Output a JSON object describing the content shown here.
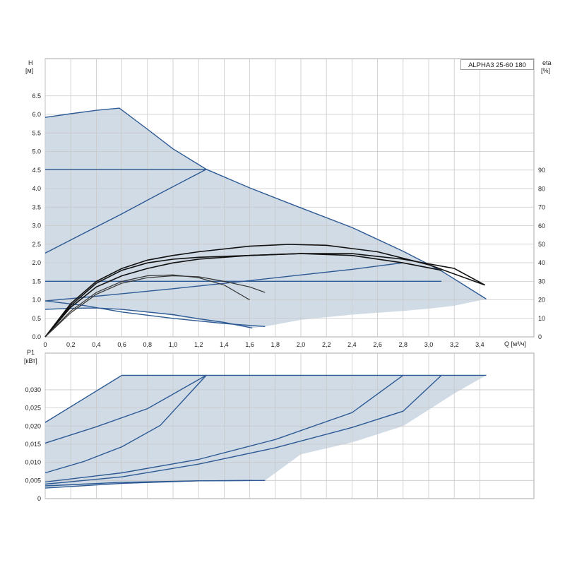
{
  "chart_data": [
    {
      "type": "line",
      "model_label": "ALPHA3 25-60 180",
      "y_label": "H",
      "y_unit": "[м]",
      "y2_label": "eta",
      "y2_unit": "[%]",
      "x_label": "Q [м³/ч]",
      "xlim": [
        0,
        3.7
      ],
      "ylim": [
        0,
        7.5
      ],
      "y2lim": [
        0,
        100
      ],
      "x_ticks": [
        "0",
        "0,2",
        "0,4",
        "0,6",
        "0,8",
        "1,0",
        "1,2",
        "1,4",
        "1,6",
        "1,8",
        "2,0",
        "2,2",
        "2,4",
        "2,6",
        "2,8",
        "3,0",
        "3,2",
        "3,4"
      ],
      "y_ticks": [
        "0.0",
        "0.5",
        "1.0",
        "1.5",
        "2.0",
        "2.5",
        "3.0",
        "3.5",
        "4.0",
        "4.5",
        "5.0",
        "5.5",
        "6.0",
        "6.5"
      ],
      "y2_ticks": [
        "0",
        "10",
        "20",
        "30",
        "40",
        "50",
        "60",
        "70",
        "80",
        "90"
      ],
      "grid": true,
      "envelope": [
        [
          0,
          5.92
        ],
        [
          0.2,
          6.02
        ],
        [
          0.4,
          6.11
        ],
        [
          0.58,
          6.17
        ],
        [
          0.8,
          5.6
        ],
        [
          1.0,
          5.07
        ],
        [
          1.26,
          4.52
        ],
        [
          1.6,
          4.02
        ],
        [
          2.0,
          3.48
        ],
        [
          2.4,
          2.95
        ],
        [
          2.8,
          2.31
        ],
        [
          3.1,
          1.78
        ],
        [
          3.45,
          1.02
        ],
        [
          3.2,
          0.84
        ],
        [
          3.0,
          0.76
        ],
        [
          2.8,
          0.7
        ],
        [
          2.4,
          0.6
        ],
        [
          2.0,
          0.46
        ],
        [
          1.72,
          0.28
        ],
        [
          1.62,
          0.24
        ],
        [
          1.2,
          0.46
        ],
        [
          0.8,
          0.68
        ],
        [
          0.4,
          0.78
        ],
        [
          0.2,
          0.77
        ],
        [
          0,
          0.74
        ]
      ],
      "pump_curves": [
        {
          "points": [
            [
              0,
              0.74
            ],
            [
              0.2,
              0.77
            ],
            [
              0.4,
              0.78
            ],
            [
              0.6,
              0.74
            ],
            [
              0.8,
              0.67
            ],
            [
              1.0,
              0.6
            ],
            [
              1.2,
              0.49
            ],
            [
              1.4,
              0.39
            ],
            [
              1.62,
              0.24
            ]
          ]
        },
        {
          "points": [
            [
              0,
              0.97
            ],
            [
              0.3,
              0.85
            ],
            [
              0.6,
              0.67
            ],
            [
              1.0,
              0.5
            ],
            [
              1.4,
              0.36
            ],
            [
              1.72,
              0.28
            ]
          ]
        },
        {
          "points": [
            [
              0,
              4.52
            ],
            [
              1.26,
              4.52
            ]
          ]
        },
        {
          "points": [
            [
              0,
              1.5
            ],
            [
              3.1,
              1.5
            ]
          ]
        },
        {
          "points": [
            [
              0,
              2.26
            ],
            [
              0.3,
              2.79
            ],
            [
              0.6,
              3.32
            ],
            [
              0.9,
              3.87
            ],
            [
              1.26,
              4.52
            ]
          ]
        },
        {
          "points": [
            [
              0,
              0.97
            ],
            [
              0.5,
              1.13
            ],
            [
              1.0,
              1.3
            ],
            [
              1.5,
              1.48
            ],
            [
              2.0,
              1.67
            ],
            [
              2.4,
              1.82
            ],
            [
              2.8,
              2.0
            ]
          ]
        },
        {
          "points": [
            [
              0,
              5.92
            ],
            [
              0.2,
              6.02
            ],
            [
              0.4,
              6.11
            ],
            [
              0.58,
              6.17
            ],
            [
              0.8,
              5.6
            ],
            [
              1.0,
              5.07
            ],
            [
              1.26,
              4.52
            ],
            [
              1.6,
              4.02
            ],
            [
              2.0,
              3.48
            ],
            [
              2.4,
              2.95
            ],
            [
              2.8,
              2.31
            ],
            [
              3.1,
              1.78
            ],
            [
              3.45,
              1.02
            ]
          ]
        }
      ],
      "efficiency_curves_eta_percent": [
        {
          "points": [
            [
              0,
              0
            ],
            [
              0.2,
              17
            ],
            [
              0.4,
              29
            ],
            [
              0.6,
              36
            ],
            [
              0.8,
              40
            ],
            [
              1.0,
              42
            ],
            [
              1.2,
              43
            ],
            [
              1.6,
              44
            ],
            [
              2.0,
              45
            ],
            [
              2.4,
              45
            ],
            [
              2.8,
              42
            ],
            [
              3.2,
              37
            ],
            [
              3.44,
              28
            ]
          ]
        },
        {
          "points": [
            [
              0,
              0
            ],
            [
              0.2,
              18
            ],
            [
              0.4,
              30
            ],
            [
              0.6,
              37
            ],
            [
              0.8,
              41.5
            ],
            [
              1.0,
              44
            ],
            [
              1.2,
              46
            ],
            [
              1.6,
              49
            ],
            [
              1.9,
              50
            ],
            [
              2.2,
              49.5
            ],
            [
              2.6,
              46
            ],
            [
              3.0,
              39
            ],
            [
              3.44,
              28
            ]
          ]
        },
        {
          "points": [
            [
              0,
              0
            ],
            [
              0.2,
              16
            ],
            [
              0.4,
              27
            ],
            [
              0.6,
              33
            ],
            [
              0.8,
              37
            ],
            [
              1.0,
              40
            ],
            [
              1.2,
              42
            ],
            [
              1.6,
              44
            ],
            [
              2.0,
              45
            ],
            [
              2.4,
              44
            ],
            [
              2.8,
              40
            ],
            [
              3.1,
              36
            ]
          ]
        },
        {
          "points": [
            [
              0,
              0
            ],
            [
              0.2,
              14
            ],
            [
              0.4,
              24
            ],
            [
              0.6,
              30
            ],
            [
              0.8,
              33
            ],
            [
              1.0,
              33.5
            ],
            [
              1.2,
              32
            ],
            [
              1.4,
              28
            ],
            [
              1.6,
              20
            ]
          ]
        },
        {
          "points": [
            [
              0,
              0
            ],
            [
              0.2,
              13
            ],
            [
              0.4,
              23
            ],
            [
              0.6,
              29
            ],
            [
              0.8,
              32
            ],
            [
              1.0,
              33
            ],
            [
              1.2,
              32.5
            ],
            [
              1.4,
              30
            ],
            [
              1.6,
              27
            ],
            [
              1.72,
              24
            ]
          ]
        }
      ]
    },
    {
      "type": "line",
      "y_label": "P1",
      "y_unit": "[кВт]",
      "xlim": [
        0,
        3.7
      ],
      "ylim": [
        0,
        0.035
      ],
      "y_ticks": [
        "0",
        "0,005",
        "0,010",
        "0,015",
        "0,020",
        "0,025",
        "0,030"
      ],
      "grid": true,
      "envelope": [
        [
          0,
          0.021
        ],
        [
          0.6,
          0.034
        ],
        [
          3.45,
          0.034
        ],
        [
          3.2,
          0.029
        ],
        [
          2.8,
          0.02
        ],
        [
          2.4,
          0.0155
        ],
        [
          2.0,
          0.0122
        ],
        [
          1.72,
          0.005
        ],
        [
          1.62,
          0.005
        ],
        [
          1.2,
          0.0049
        ],
        [
          0.6,
          0.0042
        ],
        [
          0,
          0.0029
        ]
      ],
      "power_curves": [
        {
          "points": [
            [
              0,
              0.021
            ],
            [
              0.6,
              0.034
            ]
          ]
        },
        {
          "points": [
            [
              0,
              0.0153
            ],
            [
              0.4,
              0.0198
            ],
            [
              0.8,
              0.0248
            ],
            [
              1.26,
              0.034
            ]
          ]
        },
        {
          "points": [
            [
              0,
              0.0071
            ],
            [
              0.3,
              0.0102
            ],
            [
              0.6,
              0.0143
            ],
            [
              0.9,
              0.0202
            ],
            [
              1.26,
              0.034
            ]
          ]
        },
        {
          "points": [
            [
              0,
              0.0046
            ],
            [
              0.6,
              0.0071
            ],
            [
              1.2,
              0.0108
            ],
            [
              1.8,
              0.0163
            ],
            [
              2.4,
              0.0237
            ],
            [
              2.8,
              0.034
            ]
          ]
        },
        {
          "points": [
            [
              0,
              0.004
            ],
            [
              0.6,
              0.006
            ],
            [
              1.2,
              0.0095
            ],
            [
              1.8,
              0.014
            ],
            [
              2.4,
              0.0196
            ],
            [
              2.8,
              0.0241
            ],
            [
              3.1,
              0.034
            ]
          ]
        },
        {
          "points": [
            [
              0,
              0.0035
            ],
            [
              0.6,
              0.0045
            ],
            [
              1.2,
              0.0049
            ],
            [
              1.62,
              0.005
            ]
          ]
        },
        {
          "points": [
            [
              0,
              0.0029
            ],
            [
              0.6,
              0.0042
            ],
            [
              1.2,
              0.0049
            ],
            [
              1.72,
              0.005
            ]
          ]
        },
        {
          "points": [
            [
              0.6,
              0.034
            ],
            [
              3.45,
              0.034
            ]
          ]
        }
      ]
    }
  ]
}
